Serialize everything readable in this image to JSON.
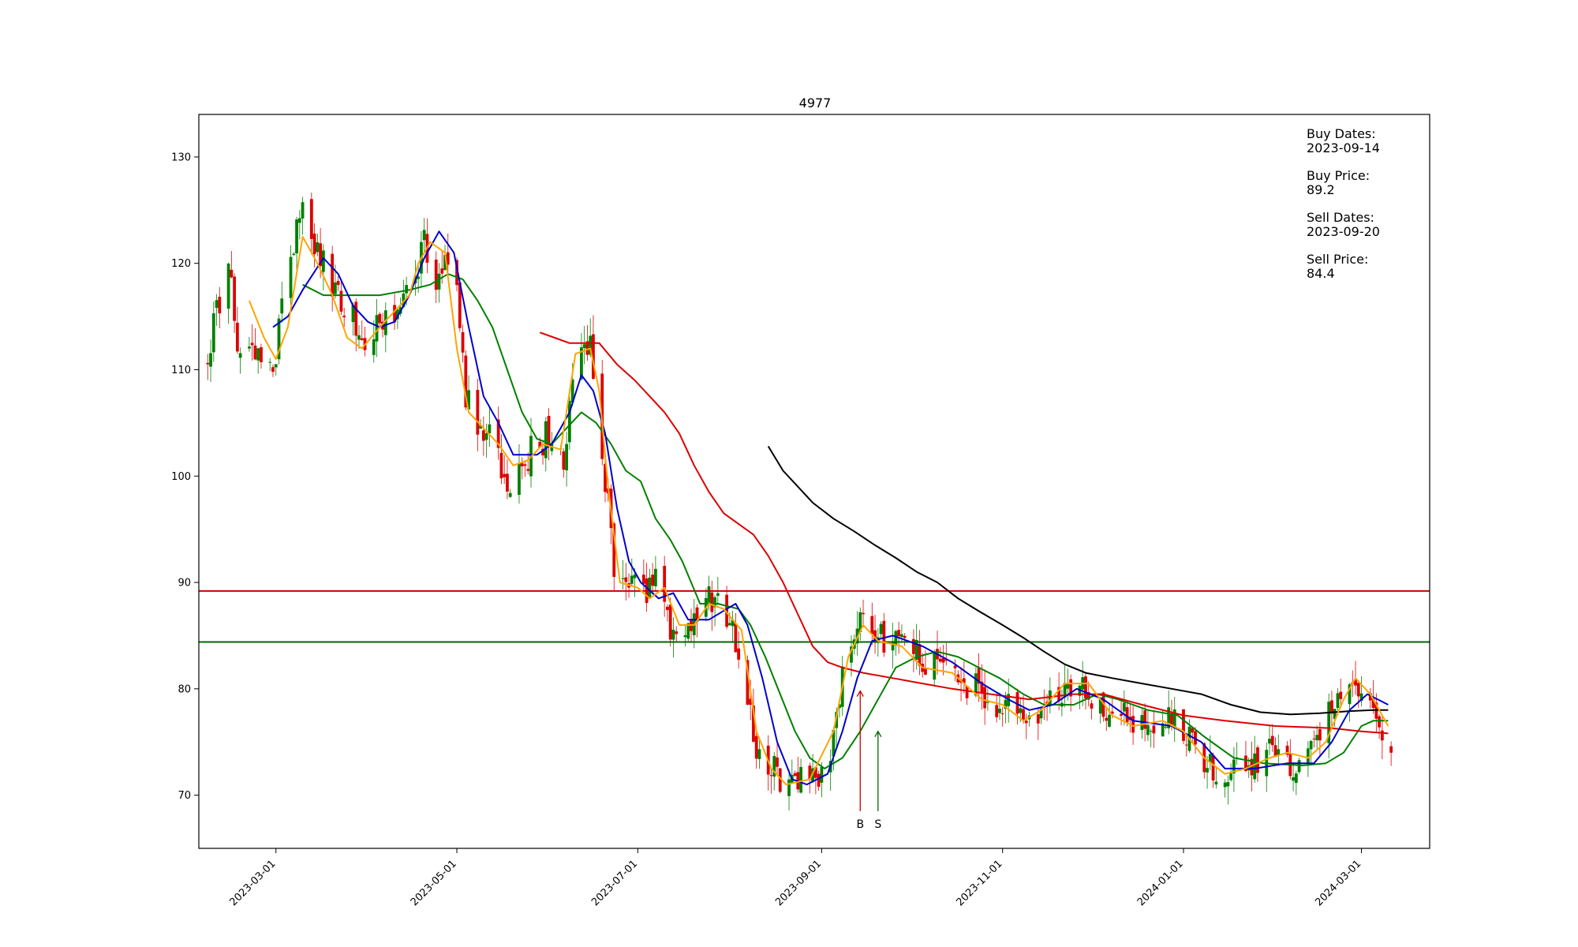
{
  "chart_data": {
    "type": "candlestick",
    "title": "4977",
    "xlabel": "",
    "ylabel": "",
    "xlim": [
      "2023-02-03",
      "2024-03-24"
    ],
    "ylim": [
      65,
      134
    ],
    "y_ticks": [
      70,
      80,
      90,
      100,
      110,
      120,
      130
    ],
    "x_ticks": [
      "2023-03-01",
      "2023-05-01",
      "2023-07-01",
      "2023-09-01",
      "2023-11-01",
      "2024-01-01",
      "2024-03-01"
    ],
    "grid": false,
    "colors": {
      "up": "#008000",
      "down": "#dd0000",
      "ma_fast": "#ffa500",
      "ma_mid": "#0000cc",
      "ma_slow": "#008000",
      "ma_long": "#dd0000",
      "ma_longest": "#000000",
      "buy_line": "#cc0000",
      "sell_line": "#006600"
    },
    "candles_anchors": [
      [
        "2023-02-06",
        110.5
      ],
      [
        "2023-02-09",
        116
      ],
      [
        "2023-02-14",
        119
      ],
      [
        "2023-02-17",
        110
      ],
      [
        "2023-02-22",
        112
      ],
      [
        "2023-02-28",
        110
      ],
      [
        "2023-03-05",
        119
      ],
      [
        "2023-03-10",
        126
      ],
      [
        "2023-03-15",
        121
      ],
      [
        "2023-03-20",
        118
      ],
      [
        "2023-03-25",
        116
      ],
      [
        "2023-03-30",
        113
      ],
      [
        "2023-04-05",
        114
      ],
      [
        "2023-04-10",
        114
      ],
      [
        "2023-04-15",
        117
      ],
      [
        "2023-04-20",
        122
      ],
      [
        "2023-04-25",
        118
      ],
      [
        "2023-04-30",
        121
      ],
      [
        "2023-05-04",
        108
      ],
      [
        "2023-05-08",
        105
      ],
      [
        "2023-05-13",
        104
      ],
      [
        "2023-05-18",
        99.5
      ],
      [
        "2023-05-25",
        102
      ],
      [
        "2023-06-01",
        104
      ],
      [
        "2023-06-06",
        101
      ],
      [
        "2023-06-10",
        112
      ],
      [
        "2023-06-15",
        113
      ],
      [
        "2023-06-20",
        100
      ],
      [
        "2023-06-23",
        91
      ],
      [
        "2023-06-27",
        90
      ],
      [
        "2023-07-01",
        89
      ],
      [
        "2023-07-04",
        89
      ],
      [
        "2023-07-08",
        92
      ],
      [
        "2023-07-12",
        85
      ],
      [
        "2023-07-16",
        84.5
      ],
      [
        "2023-07-20",
        87
      ],
      [
        "2023-07-25",
        88.5
      ],
      [
        "2023-07-30",
        87
      ],
      [
        "2023-08-03",
        85
      ],
      [
        "2023-08-07",
        79
      ],
      [
        "2023-08-10",
        73
      ],
      [
        "2023-08-15",
        72.5
      ],
      [
        "2023-08-20",
        71
      ],
      [
        "2023-08-25",
        71.5
      ],
      [
        "2023-08-30",
        71.5
      ],
      [
        "2023-09-03",
        73
      ],
      [
        "2023-09-07",
        80
      ],
      [
        "2023-09-10",
        83
      ],
      [
        "2023-09-14",
        87
      ],
      [
        "2023-09-18",
        85
      ],
      [
        "2023-09-20",
        84.4
      ],
      [
        "2023-09-25",
        85
      ],
      [
        "2023-10-01",
        84
      ],
      [
        "2023-10-06",
        82
      ],
      [
        "2023-10-12",
        82
      ],
      [
        "2023-10-18",
        81
      ],
      [
        "2023-10-25",
        79.5
      ],
      [
        "2023-11-01",
        77.5
      ],
      [
        "2023-11-05",
        79
      ],
      [
        "2023-11-10",
        76
      ],
      [
        "2023-11-15",
        78.5
      ],
      [
        "2023-11-20",
        80
      ],
      [
        "2023-11-27",
        80.5
      ],
      [
        "2023-12-03",
        79
      ],
      [
        "2023-12-10",
        77.5
      ],
      [
        "2023-12-17",
        76.5
      ],
      [
        "2023-12-24",
        77
      ],
      [
        "2023-12-31",
        77
      ],
      [
        "2024-01-07",
        74
      ],
      [
        "2024-01-14",
        72
      ],
      [
        "2024-01-20",
        72.5
      ],
      [
        "2024-01-25",
        73
      ],
      [
        "2024-02-01",
        75
      ],
      [
        "2024-02-07",
        73
      ],
      [
        "2024-02-12",
        73
      ],
      [
        "2024-02-17",
        75.5
      ],
      [
        "2024-02-22",
        80
      ],
      [
        "2024-02-26",
        82
      ],
      [
        "2024-03-01",
        80
      ],
      [
        "2024-03-05",
        77.5
      ],
      [
        "2024-03-08",
        76.5
      ],
      [
        "2024-03-11",
        73
      ]
    ],
    "ma_fast": [
      [
        "2023-02-20",
        116.5
      ],
      [
        "2023-02-25",
        113
      ],
      [
        "2023-03-01",
        111
      ],
      [
        "2023-03-05",
        114
      ],
      [
        "2023-03-10",
        122.5
      ],
      [
        "2023-03-15",
        120
      ],
      [
        "2023-03-20",
        117
      ],
      [
        "2023-03-25",
        113
      ],
      [
        "2023-03-30",
        112
      ],
      [
        "2023-04-05",
        114
      ],
      [
        "2023-04-10",
        115.5
      ],
      [
        "2023-04-15",
        117
      ],
      [
        "2023-04-18",
        120
      ],
      [
        "2023-04-22",
        122
      ],
      [
        "2023-04-27",
        121
      ],
      [
        "2023-05-01",
        112
      ],
      [
        "2023-05-05",
        106
      ],
      [
        "2023-05-10",
        104.5
      ],
      [
        "2023-05-15",
        103
      ],
      [
        "2023-05-20",
        101
      ],
      [
        "2023-05-25",
        101.5
      ],
      [
        "2023-05-30",
        103
      ],
      [
        "2023-06-05",
        102.5
      ],
      [
        "2023-06-10",
        111.5
      ],
      [
        "2023-06-15",
        112
      ],
      [
        "2023-06-18",
        108
      ],
      [
        "2023-06-21",
        99
      ],
      [
        "2023-06-25",
        90
      ],
      [
        "2023-07-01",
        89.5
      ],
      [
        "2023-07-05",
        88.5
      ],
      [
        "2023-07-10",
        89.5
      ],
      [
        "2023-07-15",
        86
      ],
      [
        "2023-07-20",
        86
      ],
      [
        "2023-07-25",
        88
      ],
      [
        "2023-07-30",
        87.5
      ],
      [
        "2023-08-05",
        85.5
      ],
      [
        "2023-08-10",
        76
      ],
      [
        "2023-08-15",
        72.5
      ],
      [
        "2023-08-20",
        71
      ],
      [
        "2023-08-28",
        71.5
      ],
      [
        "2023-09-05",
        76
      ],
      [
        "2023-09-10",
        83
      ],
      [
        "2023-09-15",
        86
      ],
      [
        "2023-09-20",
        84.5
      ],
      [
        "2023-09-28",
        84
      ],
      [
        "2023-10-05",
        82
      ],
      [
        "2023-10-15",
        81.5
      ],
      [
        "2023-10-25",
        79
      ],
      [
        "2023-11-01",
        78.5
      ],
      [
        "2023-11-08",
        77
      ],
      [
        "2023-11-14",
        78
      ],
      [
        "2023-11-22",
        80.5
      ],
      [
        "2023-11-30",
        80.5
      ],
      [
        "2023-12-08",
        77.5
      ],
      [
        "2023-12-15",
        76.5
      ],
      [
        "2023-12-25",
        77
      ],
      [
        "2024-01-01",
        76
      ],
      [
        "2024-01-08",
        73.5
      ],
      [
        "2024-01-15",
        72
      ],
      [
        "2024-01-22",
        72.5
      ],
      [
        "2024-01-30",
        73.5
      ],
      [
        "2024-02-05",
        74
      ],
      [
        "2024-02-12",
        73.5
      ],
      [
        "2024-02-18",
        75
      ],
      [
        "2024-02-24",
        79
      ],
      [
        "2024-02-28",
        81
      ],
      [
        "2024-03-04",
        79.5
      ],
      [
        "2024-03-10",
        76.5
      ]
    ],
    "ma_mid": [
      [
        "2023-02-28",
        114
      ],
      [
        "2023-03-05",
        115
      ],
      [
        "2023-03-10",
        117.5
      ],
      [
        "2023-03-17",
        120.5
      ],
      [
        "2023-03-22",
        119
      ],
      [
        "2023-03-27",
        116
      ],
      [
        "2023-04-01",
        114.5
      ],
      [
        "2023-04-05",
        114
      ],
      [
        "2023-04-10",
        114.5
      ],
      [
        "2023-04-15",
        117
      ],
      [
        "2023-04-20",
        120.5
      ],
      [
        "2023-04-25",
        123
      ],
      [
        "2023-04-30",
        121
      ],
      [
        "2023-05-05",
        114
      ],
      [
        "2023-05-10",
        107.5
      ],
      [
        "2023-05-15",
        105
      ],
      [
        "2023-05-20",
        102
      ],
      [
        "2023-05-28",
        102
      ],
      [
        "2023-06-02",
        103
      ],
      [
        "2023-06-08",
        106
      ],
      [
        "2023-06-12",
        109.5
      ],
      [
        "2023-06-16",
        108
      ],
      [
        "2023-06-20",
        104
      ],
      [
        "2023-06-24",
        97
      ],
      [
        "2023-06-28",
        92
      ],
      [
        "2023-07-02",
        90
      ],
      [
        "2023-07-08",
        88.5
      ],
      [
        "2023-07-13",
        89
      ],
      [
        "2023-07-18",
        86.5
      ],
      [
        "2023-07-25",
        86.5
      ],
      [
        "2023-07-31",
        87.5
      ],
      [
        "2023-08-03",
        88
      ],
      [
        "2023-08-07",
        86
      ],
      [
        "2023-08-12",
        81
      ],
      [
        "2023-08-17",
        75
      ],
      [
        "2023-08-22",
        71.5
      ],
      [
        "2023-08-27",
        71
      ],
      [
        "2023-09-03",
        72
      ],
      [
        "2023-09-08",
        76
      ],
      [
        "2023-09-13",
        81
      ],
      [
        "2023-09-18",
        84.5
      ],
      [
        "2023-09-25",
        85
      ],
      [
        "2023-10-05",
        84
      ],
      [
        "2023-10-15",
        82.5
      ],
      [
        "2023-10-25",
        80.5
      ],
      [
        "2023-11-03",
        79
      ],
      [
        "2023-11-10",
        78
      ],
      [
        "2023-11-18",
        78.5
      ],
      [
        "2023-11-26",
        80
      ],
      [
        "2023-12-05",
        79
      ],
      [
        "2023-12-15",
        77
      ],
      [
        "2023-12-28",
        76.5
      ],
      [
        "2024-01-07",
        75
      ],
      [
        "2024-01-15",
        72.5
      ],
      [
        "2024-01-25",
        72.5
      ],
      [
        "2024-02-05",
        73
      ],
      [
        "2024-02-14",
        73
      ],
      [
        "2024-02-20",
        75
      ],
      [
        "2024-02-26",
        78
      ],
      [
        "2024-03-03",
        79.5
      ],
      [
        "2024-03-10",
        78.5
      ]
    ],
    "ma_slow": [
      [
        "2023-03-10",
        118
      ],
      [
        "2023-03-17",
        117
      ],
      [
        "2023-03-25",
        117
      ],
      [
        "2023-04-05",
        117
      ],
      [
        "2023-04-15",
        117.5
      ],
      [
        "2023-04-22",
        118
      ],
      [
        "2023-04-28",
        119
      ],
      [
        "2023-05-03",
        118.5
      ],
      [
        "2023-05-08",
        116.5
      ],
      [
        "2023-05-13",
        114
      ],
      [
        "2023-05-18",
        110
      ],
      [
        "2023-05-23",
        106
      ],
      [
        "2023-05-28",
        103.5
      ],
      [
        "2023-06-02",
        103
      ],
      [
        "2023-06-07",
        104.5
      ],
      [
        "2023-06-12",
        106
      ],
      [
        "2023-06-17",
        105
      ],
      [
        "2023-06-22",
        103
      ],
      [
        "2023-06-27",
        100.5
      ],
      [
        "2023-07-02",
        99.5
      ],
      [
        "2023-07-07",
        96
      ],
      [
        "2023-07-12",
        94
      ],
      [
        "2023-07-16",
        92
      ],
      [
        "2023-07-22",
        88
      ],
      [
        "2023-07-28",
        88
      ],
      [
        "2023-08-04",
        87.5
      ],
      [
        "2023-08-08",
        86
      ],
      [
        "2023-08-13",
        83
      ],
      [
        "2023-08-18",
        79.5
      ],
      [
        "2023-08-23",
        76
      ],
      [
        "2023-08-28",
        73.5
      ],
      [
        "2023-09-02",
        72.5
      ],
      [
        "2023-09-08",
        73.5
      ],
      [
        "2023-09-14",
        76
      ],
      [
        "2023-09-20",
        79
      ],
      [
        "2023-09-26",
        82
      ],
      [
        "2023-10-03",
        83
      ],
      [
        "2023-10-10",
        83.5
      ],
      [
        "2023-10-17",
        83
      ],
      [
        "2023-10-24",
        82
      ],
      [
        "2023-10-31",
        81
      ],
      [
        "2023-11-08",
        79.5
      ],
      [
        "2023-11-15",
        78.5
      ],
      [
        "2023-11-25",
        78.5
      ],
      [
        "2023-12-03",
        79.5
      ],
      [
        "2023-12-10",
        79
      ],
      [
        "2023-12-20",
        78
      ],
      [
        "2023-12-30",
        77.5
      ],
      [
        "2024-01-08",
        75.5
      ],
      [
        "2024-01-18",
        73.5
      ],
      [
        "2024-01-28",
        73
      ],
      [
        "2024-02-10",
        72.8
      ],
      [
        "2024-02-18",
        73
      ],
      [
        "2024-02-24",
        74
      ],
      [
        "2024-03-01",
        76.5
      ],
      [
        "2024-03-05",
        77
      ],
      [
        "2024-03-10",
        77
      ]
    ],
    "ma_long": [
      [
        "2023-05-29",
        113.5
      ],
      [
        "2023-06-03",
        113
      ],
      [
        "2023-06-08",
        112.5
      ],
      [
        "2023-06-18",
        112.5
      ],
      [
        "2023-06-24",
        110.5
      ],
      [
        "2023-06-30",
        109
      ],
      [
        "2023-07-05",
        107.5
      ],
      [
        "2023-07-10",
        106
      ],
      [
        "2023-07-15",
        104
      ],
      [
        "2023-07-20",
        101
      ],
      [
        "2023-07-25",
        98.5
      ],
      [
        "2023-07-30",
        96.5
      ],
      [
        "2023-08-04",
        95.5
      ],
      [
        "2023-08-09",
        94.5
      ],
      [
        "2023-08-14",
        92.5
      ],
      [
        "2023-08-19",
        90
      ],
      [
        "2023-08-24",
        87
      ],
      [
        "2023-08-29",
        84
      ],
      [
        "2023-09-03",
        82.5
      ],
      [
        "2023-09-08",
        82
      ],
      [
        "2023-09-15",
        81.5
      ],
      [
        "2023-09-25",
        81
      ],
      [
        "2023-10-05",
        80.5
      ],
      [
        "2023-10-15",
        80
      ],
      [
        "2023-10-28",
        79.5
      ],
      [
        "2023-11-10",
        79
      ],
      [
        "2023-11-25",
        79.5
      ],
      [
        "2023-12-05",
        79.5
      ],
      [
        "2023-12-18",
        78.5
      ],
      [
        "2024-01-01",
        77.5
      ],
      [
        "2024-01-15",
        77
      ],
      [
        "2024-02-01",
        76.5
      ],
      [
        "2024-02-20",
        76.3
      ],
      [
        "2024-03-01",
        76
      ],
      [
        "2024-03-10",
        75.8
      ]
    ],
    "ma_longest": [
      [
        "2023-08-14",
        102.8
      ],
      [
        "2023-08-19",
        100.5
      ],
      [
        "2023-08-24",
        99
      ],
      [
        "2023-08-29",
        97.5
      ],
      [
        "2023-09-05",
        96
      ],
      [
        "2023-09-12",
        94.8
      ],
      [
        "2023-09-19",
        93.5
      ],
      [
        "2023-09-26",
        92.3
      ],
      [
        "2023-10-03",
        91
      ],
      [
        "2023-10-10",
        90
      ],
      [
        "2023-10-17",
        88.5
      ],
      [
        "2023-10-24",
        87.3
      ],
      [
        "2023-11-01",
        86
      ],
      [
        "2023-11-08",
        84.8
      ],
      [
        "2023-11-15",
        83.5
      ],
      [
        "2023-11-22",
        82.3
      ],
      [
        "2023-11-29",
        81.5
      ],
      [
        "2023-12-08",
        81
      ],
      [
        "2023-12-18",
        80.5
      ],
      [
        "2023-12-28",
        80
      ],
      [
        "2024-01-07",
        79.5
      ],
      [
        "2024-01-17",
        78.5
      ],
      [
        "2024-01-27",
        77.8
      ],
      [
        "2024-02-06",
        77.6
      ],
      [
        "2024-02-16",
        77.7
      ],
      [
        "2024-02-26",
        77.9
      ],
      [
        "2024-03-05",
        78
      ],
      [
        "2024-03-10",
        78
      ]
    ],
    "hlines": [
      {
        "y": 89.2,
        "color": "#cc0000"
      },
      {
        "y": 84.4,
        "color": "#006600"
      }
    ],
    "signals": [
      {
        "label": "B",
        "date": "2023-09-14",
        "y_start": 68.5,
        "y_end": 79.8,
        "color": "#cc0000"
      },
      {
        "label": "S",
        "date": "2023-09-20",
        "y_start": 68.5,
        "y_end": 76,
        "color": "#006600"
      }
    ]
  },
  "info": {
    "buy_dates_label": "Buy Dates:",
    "buy_dates_value": "2023-09-14",
    "buy_price_label": "Buy Price:",
    "buy_price_value": "89.2",
    "sell_dates_label": "Sell Dates:",
    "sell_dates_value": "2023-09-20",
    "sell_price_label": "Sell Price:",
    "sell_price_value": "84.4"
  }
}
